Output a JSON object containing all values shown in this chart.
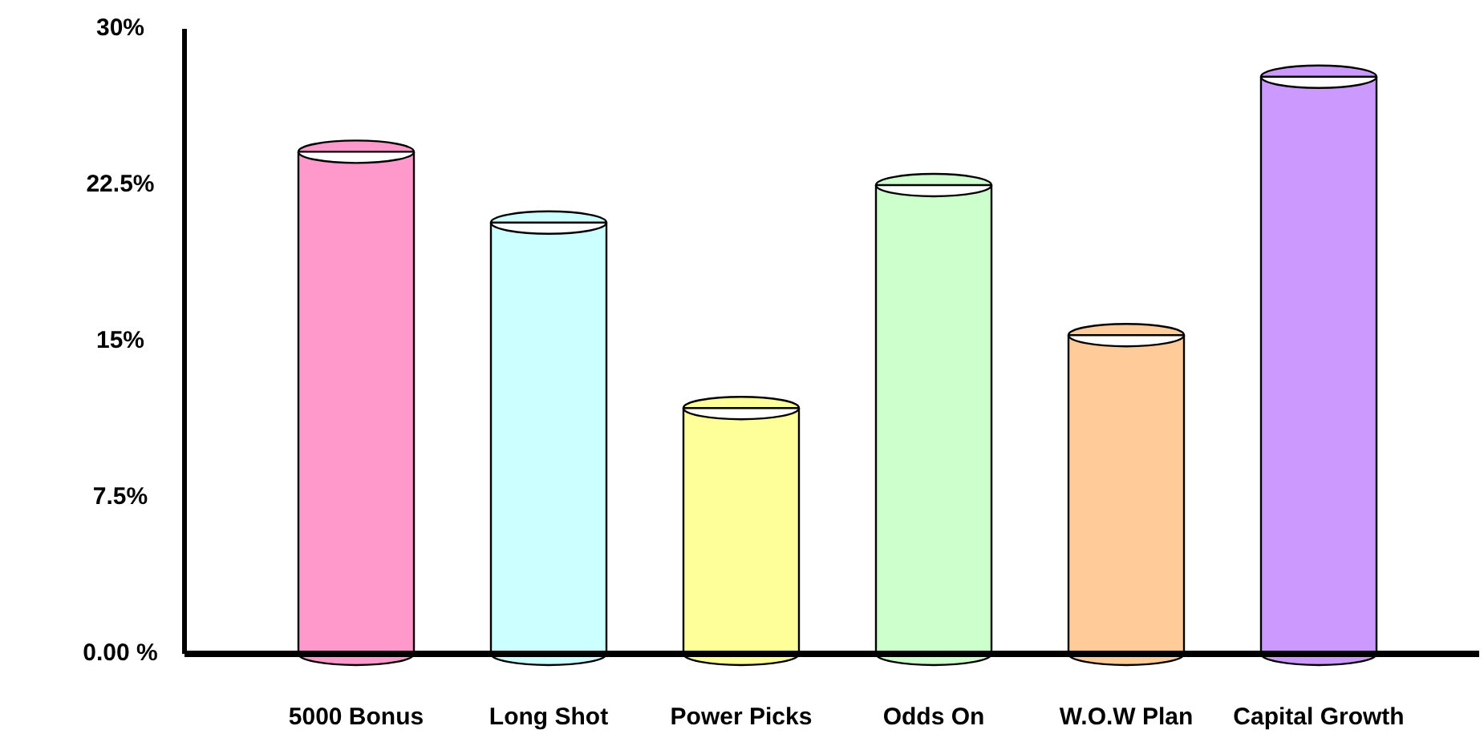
{
  "chart_data": {
    "type": "bar",
    "categories": [
      "5000 Bonus",
      "Long Shot",
      "Power Picks",
      "Odds On",
      "W.O.W Plan",
      "Capital Growth"
    ],
    "values": [
      24.1,
      20.7,
      11.8,
      22.5,
      15.3,
      27.7
    ],
    "colors": [
      "#ff99cc",
      "#ccffff",
      "#ffff99",
      "#ccffcc",
      "#ffcc99",
      "#cc99ff"
    ],
    "ylim": [
      0,
      30
    ],
    "yticks": [
      {
        "value": 0,
        "label": "0.00 %"
      },
      {
        "value": 7.5,
        "label": "7.5%"
      },
      {
        "value": 15,
        "label": "15%"
      },
      {
        "value": 22.5,
        "label": "22.5%"
      },
      {
        "value": 30,
        "label": "30%"
      }
    ],
    "grid": false,
    "legend": false
  }
}
